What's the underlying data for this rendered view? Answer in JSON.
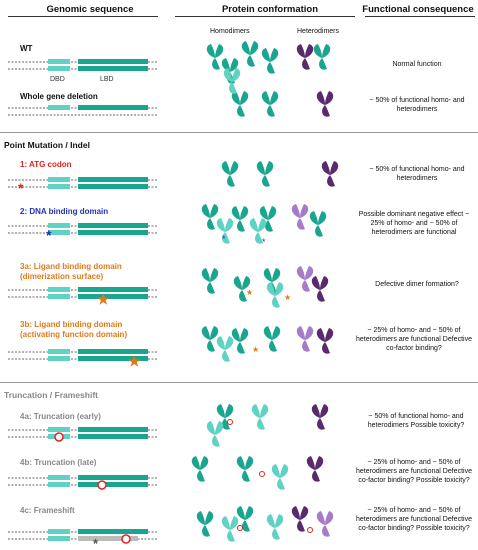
{
  "headers": {
    "genomic": "Genomic sequence",
    "protein": "Protein conformation",
    "functional": "Functional consequence",
    "homodimers": "Homodimers",
    "heterodimers": "Heterodimers"
  },
  "domain_labels": {
    "dbd": "DBD",
    "lbd": "LBD"
  },
  "colors": {
    "teal": "#1aa68e",
    "light_teal": "#5fd2c4",
    "purple": "#5a2a6e",
    "lavender": "#a57cc8",
    "red": "#e0241b",
    "blue": "#2233bb",
    "orange": "#e0791b",
    "gray": "#999999"
  },
  "sections": {
    "point": "Point Mutation / Indel",
    "truncation": "Truncation / Frameshift"
  },
  "rows": [
    {
      "id": "wt",
      "label": "WT",
      "functional": "Normal function"
    },
    {
      "id": "deletion",
      "label": "Whole gene deletion",
      "functional": "~ 50% of functional homo- and heterodimers"
    },
    {
      "id": "atg",
      "label": "1: ATG codon",
      "functional": "~ 50% of functional homo- and heterodimers"
    },
    {
      "id": "dbd",
      "label": "2: DNA binding domain",
      "functional": "Possible dominant negative effect ~ 25% of homo- and ~ 50% of heterodimers are functional"
    },
    {
      "id": "lbd_dimer",
      "label": "3a: Ligand binding domain (dimerization surface)",
      "functional": "Defective dimer formation?"
    },
    {
      "id": "lbd_af",
      "label": "3b: Ligand binding domain (activating function domain)",
      "functional": "~ 25% of homo- and ~ 50% of heterodimers are functional Defective co-factor binding?"
    },
    {
      "id": "trunc_early",
      "label": "4a: Truncation (early)",
      "functional": "~ 50% of functional homo- and heterodimers Possible toxicity?"
    },
    {
      "id": "trunc_late",
      "label": "4b: Truncation (late)",
      "functional": "~ 25% of homo- and ~ 50% of heterodimers are functional Defective co-factor binding? Possible toxicity?"
    },
    {
      "id": "frameshift",
      "label": "4c: Frameshift",
      "functional": "~ 25% of homo- and ~ 50% of heterodimers are functional Defective co-factor binding? Possible toxicity?"
    }
  ]
}
